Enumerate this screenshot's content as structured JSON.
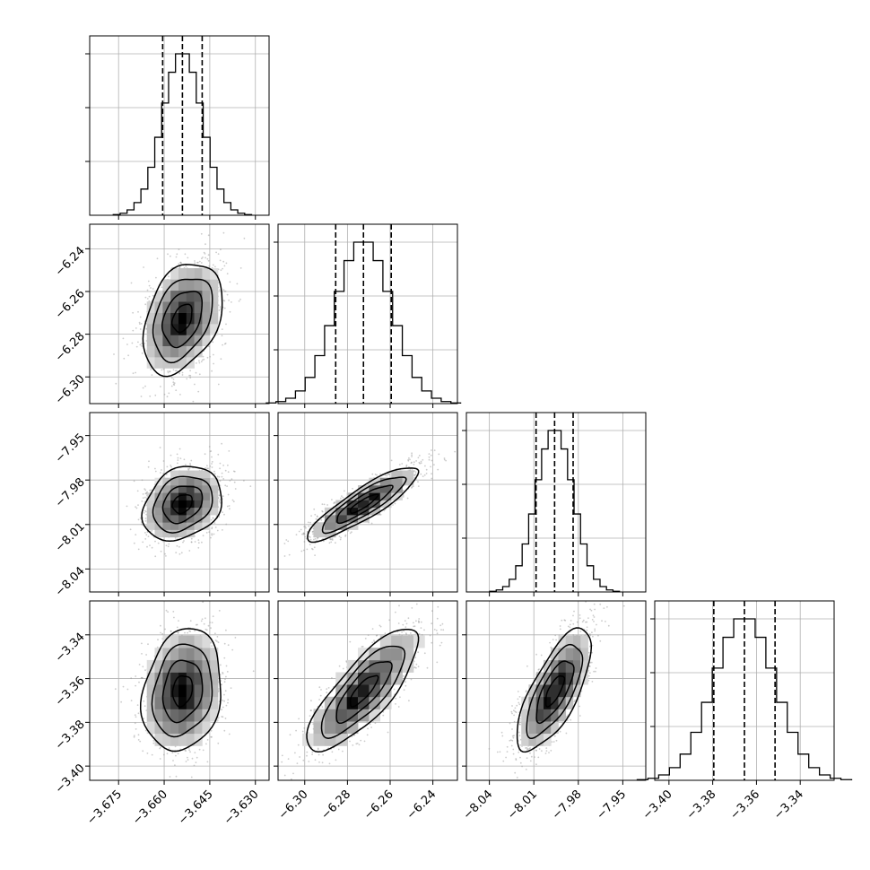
{
  "chart_data": {
    "type": "corner",
    "title": "",
    "grid": true,
    "colors": {
      "line": "#000000",
      "grid": "#b0b0b0",
      "scatter": "#9a9a9a",
      "background": "#ffffff"
    },
    "parameters": [
      {
        "name": "",
        "median": -3.654,
        "q16": -3.6605,
        "q84": -3.6475,
        "sigma": 0.0065,
        "range": [
          -3.6845,
          -3.6255
        ],
        "ticks": [
          -3.675,
          -3.66,
          -3.645,
          -3.63
        ],
        "tick_labels": [
          "−3.675",
          "−3.660",
          "−3.645",
          "−3.630"
        ]
      },
      {
        "name": "",
        "median": -6.2725,
        "q16": -6.2855,
        "q84": -6.2595,
        "sigma": 0.013,
        "range": [
          -6.3125,
          -6.2285
        ],
        "ticks": [
          -6.3,
          -6.28,
          -6.26,
          -6.24
        ],
        "tick_labels": [
          "−6.30",
          "−6.28",
          "−6.26",
          "−6.24"
        ]
      },
      {
        "name": "",
        "median": -7.996,
        "q16": -8.0085,
        "q84": -7.9835,
        "sigma": 0.0125,
        "range": [
          -8.0555,
          -7.9345
        ],
        "ticks": [
          -8.04,
          -8.01,
          -7.98,
          -7.95
        ],
        "tick_labels": [
          "−8.04",
          "−8.01",
          "−7.98",
          "−7.95"
        ]
      },
      {
        "name": "",
        "median": -3.3655,
        "q16": -3.3795,
        "q84": -3.3515,
        "sigma": 0.014,
        "range": [
          -3.4065,
          -3.3245
        ],
        "ticks": [
          -3.4,
          -3.38,
          -3.36,
          -3.34
        ],
        "tick_labels": [
          "−3.40",
          "−3.38",
          "−3.36",
          "−3.34"
        ]
      }
    ],
    "correlations": [
      {
        "i": 1,
        "j": 0,
        "rho": 0.35
      },
      {
        "i": 2,
        "j": 0,
        "rho": 0.25
      },
      {
        "i": 2,
        "j": 1,
        "rho": 0.88
      },
      {
        "i": 3,
        "j": 0,
        "rho": 0.18
      },
      {
        "i": 3,
        "j": 1,
        "rho": 0.8
      },
      {
        "i": 3,
        "j": 2,
        "rho": 0.72
      }
    ],
    "histogram_bins": 20,
    "quantile_lines": "dashed",
    "contour_levels_sigma": [
      0.5,
      1.0,
      1.5,
      2.0
    ]
  }
}
